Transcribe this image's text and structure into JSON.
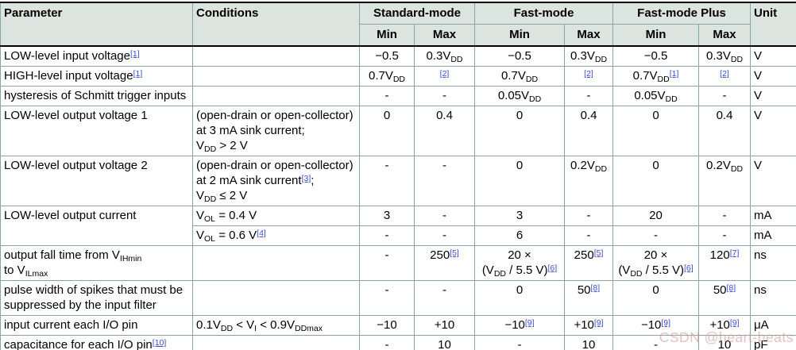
{
  "header": {
    "parameter": "Parameter",
    "conditions": "Conditions",
    "groups": [
      "Standard-mode",
      "Fast-mode",
      "Fast-mode Plus"
    ],
    "min_label": "Min",
    "max_label": "Max",
    "unit": "Unit"
  },
  "rows": [
    {
      "parameter": "LOW-level input voltage[[1]]",
      "conditions": "",
      "values": [
        "−0.5",
        "0.3V_{DD}",
        "−0.5",
        "0.3V_{DD}",
        "−0.5",
        "0.3V_{DD}"
      ],
      "unit": "V"
    },
    {
      "parameter": "HIGH-level input voltage[[1]]",
      "conditions": "",
      "values": [
        "0.7V_{DD}",
        "[[2]]",
        "0.7V_{DD}",
        "[[2]]",
        "0.7V_{DD}[[1]]",
        "[[2]]"
      ],
      "unit": "V"
    },
    {
      "parameter": "hysteresis of Schmitt trigger inputs",
      "conditions": "",
      "values": [
        "-",
        "-",
        "0.05V_{DD}",
        "-",
        "0.05V_{DD}",
        "-"
      ],
      "unit": "V"
    },
    {
      "parameter": "LOW-level output voltage 1",
      "conditions": "(open-drain or open-collector)\nat 3 mA sink current;\nV_{DD} > 2 V",
      "values": [
        "0",
        "0.4",
        "0",
        "0.4",
        "0",
        "0.4"
      ],
      "unit": "V"
    },
    {
      "parameter": "LOW-level output voltage 2",
      "conditions": "(open-drain or open-collector)\nat 2 mA sink current[[3]];\nV_{DD} ≤ 2 V",
      "values": [
        "-",
        "-",
        "0",
        "0.2V_{DD}",
        "0",
        "0.2V_{DD}"
      ],
      "unit": "V"
    },
    {
      "parameter": "LOW-level output current",
      "param_rowspan": 2,
      "conditions": "V_{OL} = 0.4 V",
      "values": [
        "3",
        "-",
        "3",
        "-",
        "20",
        "-"
      ],
      "unit": "mA"
    },
    {
      "parameter": null,
      "conditions": "V_{OL} = 0.6 V[[4]]",
      "values": [
        "-",
        "-",
        "6",
        "-",
        "-",
        "-"
      ],
      "unit": "mA"
    },
    {
      "parameter": "output fall time from V_{IHmin}\nto V_{ILmax}",
      "conditions": "",
      "values": [
        "-",
        "250[[5]]",
        "20 ×\n(V_{DD} / 5.5 V)[[6]]",
        "250[[5]]",
        "20 ×\n(V_{DD} / 5.5 V)[[6]]",
        "120[[7]]"
      ],
      "unit": "ns"
    },
    {
      "parameter": "pulse width of spikes that must be\nsuppressed by the input filter",
      "conditions": "",
      "values": [
        "-",
        "-",
        "0",
        "50[[8]]",
        "0",
        "50[[8]]"
      ],
      "unit": "ns"
    },
    {
      "parameter": "input current each I/O pin",
      "conditions": "0.1V_{DD} < V_{I} < 0.9V_{DDmax}",
      "values": [
        "−10",
        "+10",
        "−10[[9]]",
        "+10[[9]]",
        "−10[[9]]",
        "+10[[9]]"
      ],
      "unit": "μA"
    },
    {
      "parameter": "capacitance for each I/O pin[[10]]",
      "conditions": "",
      "values": [
        "-",
        "10",
        "-",
        "10",
        "-",
        "10"
      ],
      "unit": "pF"
    }
  ],
  "watermark": "CSDN @heart-beats",
  "colors": {
    "header_bg": "#dce4e0",
    "grid_line": "#8aa5a5",
    "footnote_link": "#3a4ed8",
    "watermark": "rgba(208,150,150,0.6)"
  }
}
